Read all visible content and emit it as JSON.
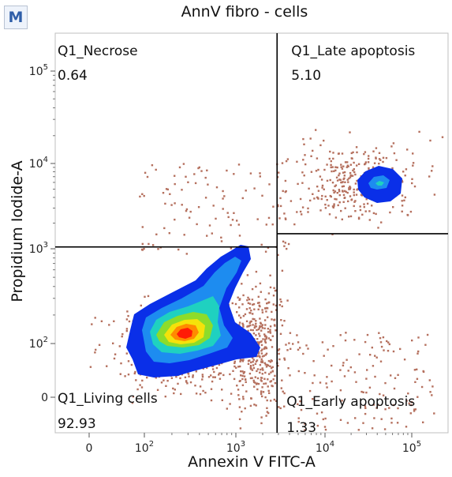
{
  "panel_badge": "M",
  "chart_data": {
    "type": "scatter",
    "title": "AnnV fibro - cells",
    "xlabel": "Annexin V FITC-A",
    "ylabel": "Propidium Iodide-A",
    "x_scale": "biexponential",
    "y_scale": "biexponential",
    "x_ticks": [
      {
        "value": 0,
        "label": "0"
      },
      {
        "value": 100,
        "base": "10",
        "exp": "2"
      },
      {
        "value": 1000,
        "base": "10",
        "exp": "3"
      },
      {
        "value": 10000,
        "base": "10",
        "exp": "4"
      },
      {
        "value": 100000,
        "base": "10",
        "exp": "5"
      }
    ],
    "y_ticks": [
      {
        "value": 0,
        "label": "0"
      },
      {
        "value": 100,
        "base": "10",
        "exp": "2"
      },
      {
        "value": 1000,
        "base": "10",
        "exp": "3"
      },
      {
        "value": 10000,
        "base": "10",
        "exp": "4"
      },
      {
        "value": 100000,
        "base": "10",
        "exp": "5"
      }
    ],
    "gates": {
      "vertical_x": 2900,
      "left_horizontal_y": 1050,
      "right_horizontal_y": 1500
    },
    "quadrants": [
      {
        "name": "Q1_Necrose",
        "percent": "0.64",
        "position": "top-left"
      },
      {
        "name": "Q1_Late apoptosis",
        "percent": "5.10",
        "position": "top-right"
      },
      {
        "name": "Q1_Living cells",
        "percent": "92.93",
        "position": "bottom-left"
      },
      {
        "name": "Q1_Early apoptosis",
        "percent": "1.33",
        "position": "bottom-right"
      }
    ],
    "density_colors": [
      "#0a2fe8",
      "#1d8cf0",
      "#1fd1c0",
      "#8ddc2a",
      "#f5e20a",
      "#ff8a00",
      "#ff1b06"
    ],
    "sparse_event_color": "#b5705e"
  }
}
